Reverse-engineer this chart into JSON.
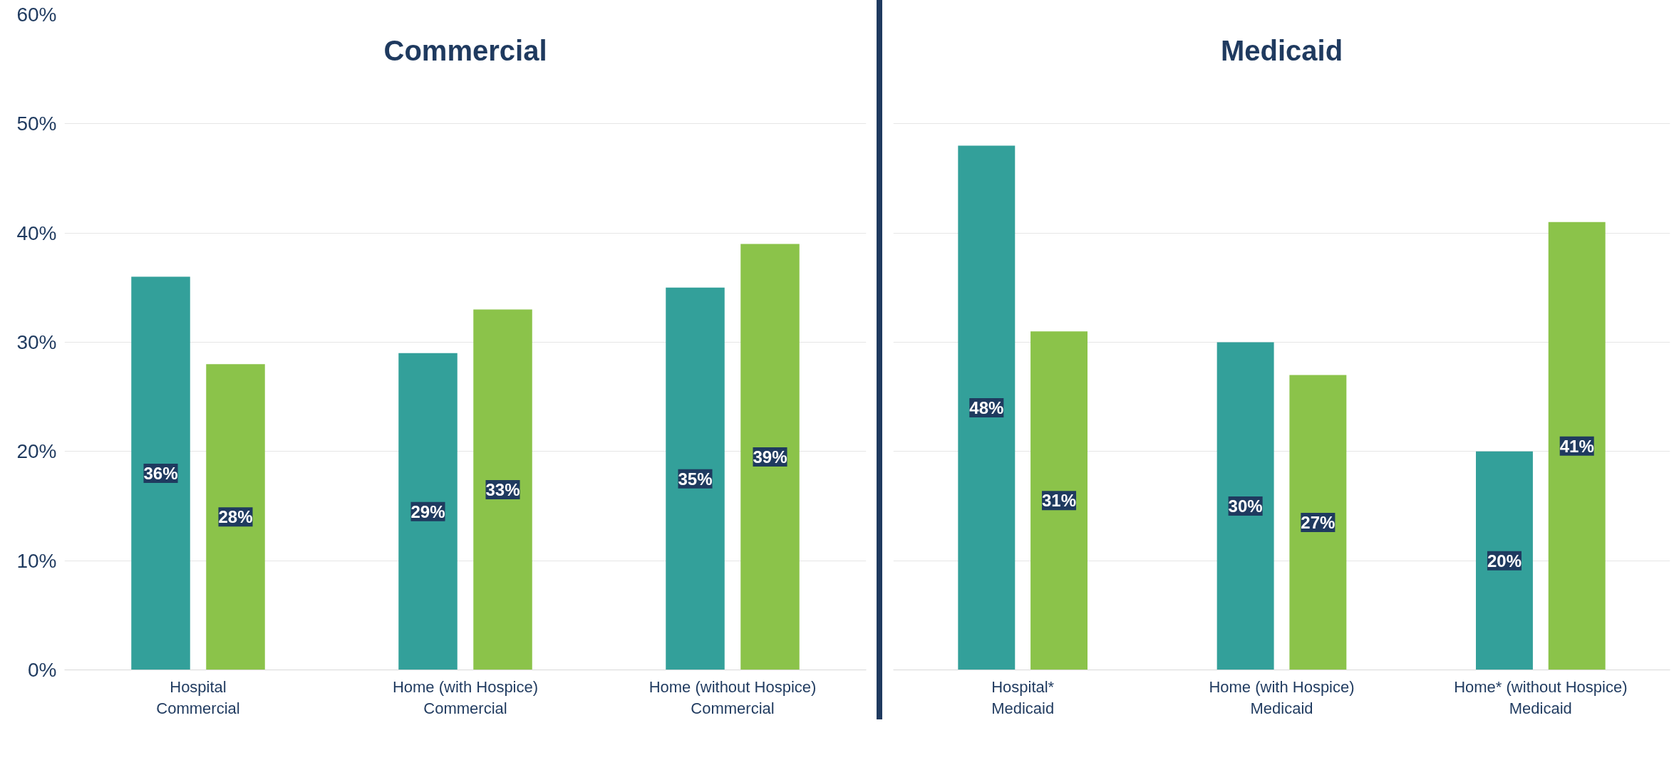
{
  "chart_data": [
    {
      "type": "bar",
      "title": "Commercial",
      "categories": [
        "Hospital\nCommercial",
        "Home (with Hospice)\nCommercial",
        "Home (without Hospice)\nCommercial"
      ],
      "series": [
        {
          "color": "#33a09a",
          "values": [
            36,
            29,
            35
          ],
          "value_labels": [
            "36%",
            "29%",
            "35%"
          ]
        },
        {
          "color": "#8bc34a",
          "values": [
            28,
            33,
            39
          ],
          "value_labels": [
            "28%",
            "33%",
            "39%"
          ]
        }
      ],
      "ylim": [
        0,
        60
      ],
      "yticks": [
        {
          "value": 0,
          "label": "0%"
        },
        {
          "value": 10,
          "label": "10%"
        },
        {
          "value": 20,
          "label": "20%"
        },
        {
          "value": 30,
          "label": "30%"
        },
        {
          "value": 40,
          "label": "40%"
        },
        {
          "value": 50,
          "label": "50%"
        },
        {
          "value": 60,
          "label": "60%"
        }
      ],
      "grid": "y"
    },
    {
      "type": "bar",
      "title": "Medicaid",
      "categories": [
        "Hospital*\nMedicaid",
        "Home (with Hospice)\nMedicaid",
        "Home* (without Hospice)\nMedicaid"
      ],
      "series": [
        {
          "color": "#33a09a",
          "values": [
            48,
            30,
            20
          ],
          "value_labels": [
            "48%",
            "30%",
            "20%"
          ]
        },
        {
          "color": "#8bc34a",
          "values": [
            31,
            27,
            41
          ],
          "value_labels": [
            "31%",
            "27%",
            "41%"
          ]
        }
      ],
      "ylim": [
        0,
        60
      ],
      "yticks": [
        0,
        10,
        20,
        30,
        40,
        50,
        60
      ],
      "grid": "y",
      "tick_labels": "x"
    }
  ]
}
